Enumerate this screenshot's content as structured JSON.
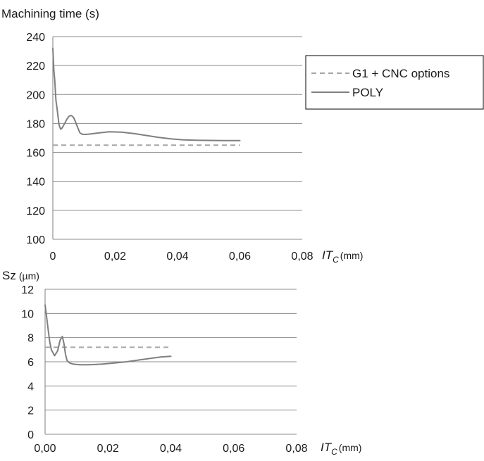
{
  "chart_data": [
    {
      "type": "line",
      "title": "",
      "ylabel": "Machining time (s)",
      "xlabel": {
        "main": "IT",
        "sub": "C",
        "unit": "(mm)"
      },
      "ylim": [
        100,
        240
      ],
      "xlim": [
        0,
        0.08
      ],
      "yticks": [
        "100",
        "120",
        "140",
        "160",
        "180",
        "200",
        "220",
        "240"
      ],
      "xticks": [
        "0",
        "0,02",
        "0,04",
        "0,06",
        "0,08"
      ],
      "grid": "horizontal",
      "legend_position": "right",
      "legend": {
        "g1": "G1 + CNC options",
        "poly": "POLY"
      },
      "series": [
        {
          "name": "G1 + CNC options",
          "style": "dashed",
          "color": "#a6a6a6",
          "x": [
            0,
            0.06
          ],
          "y": [
            165,
            165
          ]
        },
        {
          "name": "POLY",
          "style": "solid",
          "color": "#7f7f7f",
          "x": [
            0,
            0.0003,
            0.0006,
            0.001,
            0.0015,
            0.002,
            0.0025,
            0.003,
            0.0038,
            0.0045,
            0.0052,
            0.006,
            0.0067,
            0.0073,
            0.008,
            0.0087,
            0.0095,
            0.011,
            0.014,
            0.018,
            0.022,
            0.026,
            0.03,
            0.034,
            0.038,
            0.042,
            0.046,
            0.05,
            0.055,
            0.06
          ],
          "y": [
            232,
            218,
            210,
            196,
            188,
            179,
            176,
            177,
            180,
            183,
            185,
            185.5,
            184,
            181,
            177,
            173.5,
            172.5,
            172.5,
            173.3,
            174.3,
            174,
            173,
            171.7,
            170.4,
            169.3,
            168.7,
            168.4,
            168.3,
            168.2,
            168.2
          ]
        }
      ]
    },
    {
      "type": "line",
      "title": "",
      "ylabel": {
        "main": "Sz",
        "unit": "(µm)"
      },
      "xlabel": {
        "main": "IT",
        "sub": "C",
        "unit": "(mm)"
      },
      "ylim": [
        0,
        12
      ],
      "xlim": [
        0,
        0.08
      ],
      "yticks": [
        "0",
        "2",
        "4",
        "6",
        "8",
        "10",
        "12"
      ],
      "xticks": [
        "0,00",
        "0,02",
        "0,04",
        "0,06",
        "0,08"
      ],
      "grid": "horizontal",
      "series": [
        {
          "name": "G1 + CNC options",
          "style": "dashed",
          "color": "#a6a6a6",
          "x": [
            0,
            0.04
          ],
          "y": [
            7.2,
            7.2
          ]
        },
        {
          "name": "POLY",
          "style": "solid",
          "color": "#7f7f7f",
          "x": [
            0,
            0.0005,
            0.001,
            0.0015,
            0.002,
            0.003,
            0.004,
            0.0048,
            0.0055,
            0.006,
            0.0065,
            0.007,
            0.0078,
            0.009,
            0.011,
            0.014,
            0.018,
            0.022,
            0.026,
            0.03,
            0.034,
            0.037,
            0.04
          ],
          "y": [
            10.7,
            9.7,
            8.6,
            7.6,
            7.0,
            6.5,
            6.9,
            7.8,
            8.1,
            7.5,
            6.6,
            6.1,
            5.9,
            5.8,
            5.75,
            5.75,
            5.8,
            5.9,
            6.0,
            6.15,
            6.3,
            6.4,
            6.45
          ]
        }
      ]
    }
  ]
}
